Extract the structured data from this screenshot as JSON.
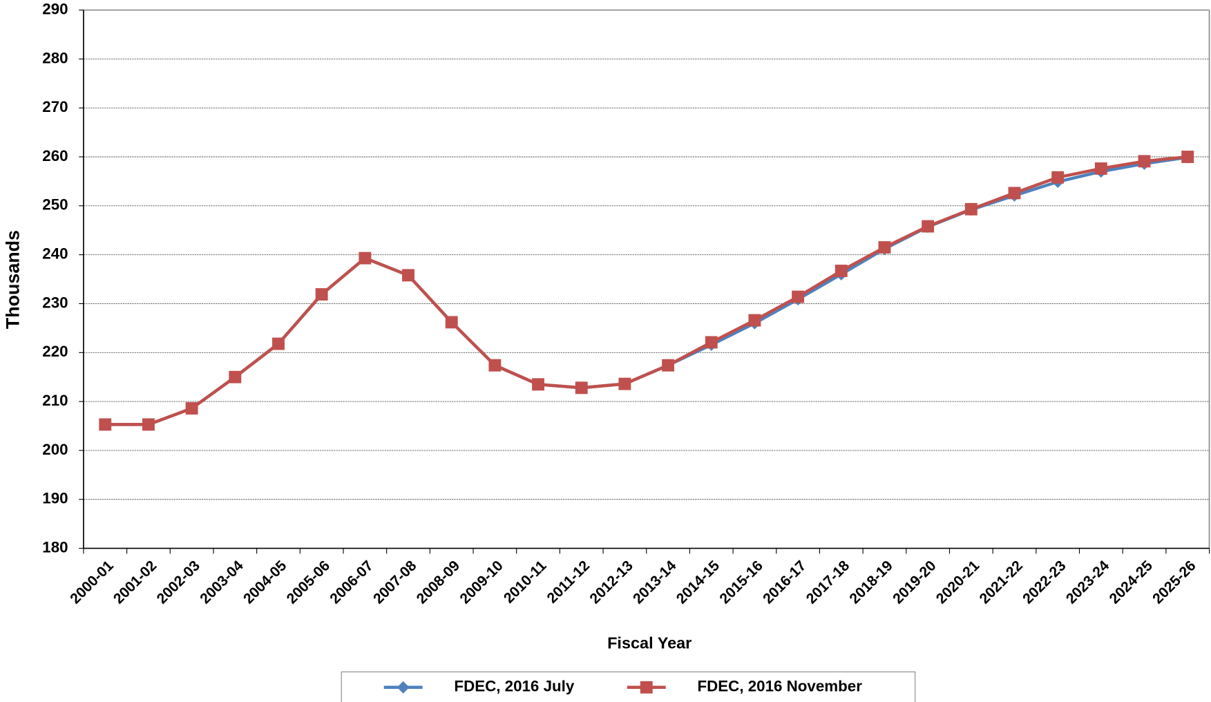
{
  "chart_data": {
    "type": "line",
    "x_label": "Fiscal Year",
    "y_label": "Thousands",
    "categories": [
      "2000-01",
      "2001-02",
      "2002-03",
      "2003-04",
      "2004-05",
      "2005-06",
      "2006-07",
      "2007-08",
      "2008-09",
      "2009-10",
      "2010-11",
      "2011-12",
      "2012-13",
      "2013-14",
      "2014-15",
      "2015-16",
      "2016-17",
      "2017-18",
      "2018-19",
      "2019-20",
      "2020-21",
      "2021-22",
      "2022-23",
      "2023-24",
      "2024-25",
      "2025-26"
    ],
    "series": [
      {
        "name": "FDEC, 2016 July",
        "color": "#4f81bd",
        "marker": "diamond",
        "values": [
          205.3,
          205.3,
          208.6,
          215.0,
          221.8,
          231.9,
          239.3,
          235.8,
          226.2,
          217.4,
          213.5,
          212.8,
          213.6,
          217.4,
          221.6,
          226.0,
          230.9,
          236.0,
          241.2,
          245.7,
          249.2,
          252.1,
          254.9,
          257.0,
          258.6,
          259.9
        ]
      },
      {
        "name": "FDEC, 2016 November",
        "color": "#c0504d",
        "marker": "square",
        "values": [
          205.3,
          205.3,
          208.6,
          215.0,
          221.8,
          231.9,
          239.3,
          235.8,
          226.2,
          217.4,
          213.5,
          212.8,
          213.6,
          217.4,
          222.1,
          226.6,
          231.4,
          236.7,
          241.5,
          245.8,
          249.3,
          252.6,
          255.8,
          257.6,
          259.1,
          260.0
        ]
      }
    ],
    "ylim": [
      180,
      290
    ],
    "yticks": [
      180,
      190,
      200,
      210,
      220,
      230,
      240,
      250,
      260,
      270,
      280,
      290
    ],
    "grid": true,
    "legend": "bottom"
  }
}
